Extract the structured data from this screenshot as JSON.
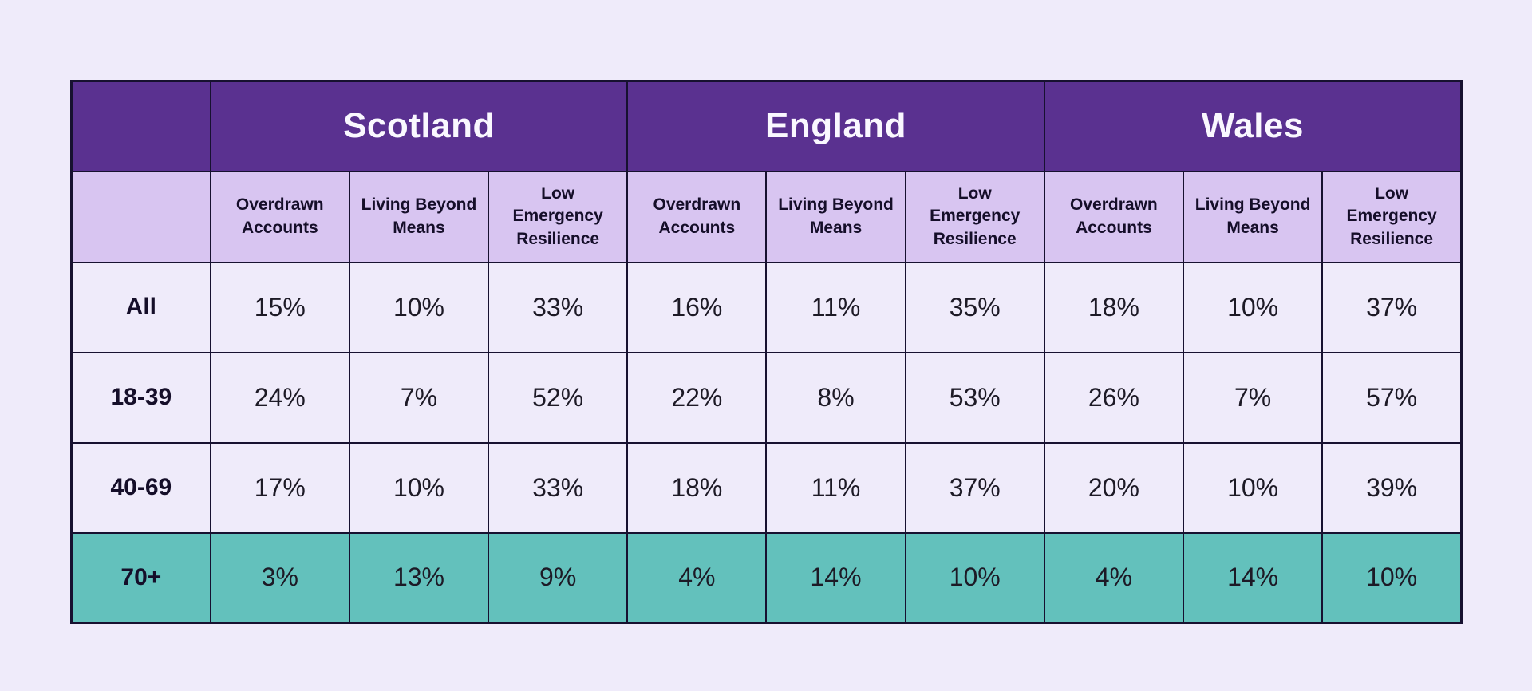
{
  "page": {
    "background": "#EFEBFA"
  },
  "table": {
    "countries": [
      "Scotland",
      "England",
      "Wales"
    ],
    "measures": [
      "Overdrawn\nAccounts",
      "Living Beyond\nMeans",
      "Low\nEmergency\nResilience"
    ],
    "rows": [
      {
        "label": "All",
        "highlight": false,
        "values": [
          "15%",
          "10%",
          "33%",
          "16%",
          "11%",
          "35%",
          "18%",
          "10%",
          "37%"
        ]
      },
      {
        "label": "18-39",
        "highlight": false,
        "values": [
          "24%",
          "7%",
          "52%",
          "22%",
          "8%",
          "53%",
          "26%",
          "7%",
          "57%"
        ]
      },
      {
        "label": "40-69",
        "highlight": false,
        "values": [
          "17%",
          "10%",
          "33%",
          "18%",
          "11%",
          "37%",
          "20%",
          "10%",
          "39%"
        ]
      },
      {
        "label": "70+",
        "highlight": true,
        "values": [
          "3%",
          "13%",
          "9%",
          "4%",
          "14%",
          "10%",
          "4%",
          "14%",
          "10%"
        ]
      }
    ],
    "colors": {
      "page_bg": "#EFEBFA",
      "country_header_bg": "#5A3190",
      "country_header_text": "#FAF8FF",
      "subheader_bg": "#D8C5F1",
      "row_bg": "#EFEBFA",
      "highlight_row_bg": "#63C1BC",
      "border": "#171130",
      "heading_text": "#150E29",
      "value_text": "#1D1A26"
    }
  },
  "chart_data": {
    "type": "table",
    "title": "",
    "column_groups": [
      "Scotland",
      "England",
      "Wales"
    ],
    "columns_per_group": [
      "Overdrawn Accounts",
      "Living Beyond Means",
      "Low Emergency Resilience"
    ],
    "row_labels": [
      "All",
      "18-39",
      "40-69",
      "70+"
    ],
    "rows_percent": [
      [
        15,
        10,
        33,
        16,
        11,
        35,
        18,
        10,
        37
      ],
      [
        24,
        7,
        52,
        22,
        8,
        53,
        26,
        7,
        57
      ],
      [
        17,
        10,
        33,
        18,
        11,
        37,
        20,
        10,
        39
      ],
      [
        3,
        13,
        9,
        4,
        14,
        10,
        4,
        14,
        10
      ]
    ],
    "unit": "%",
    "highlighted_row": "70+",
    "legend_position": "none",
    "grid": true
  }
}
